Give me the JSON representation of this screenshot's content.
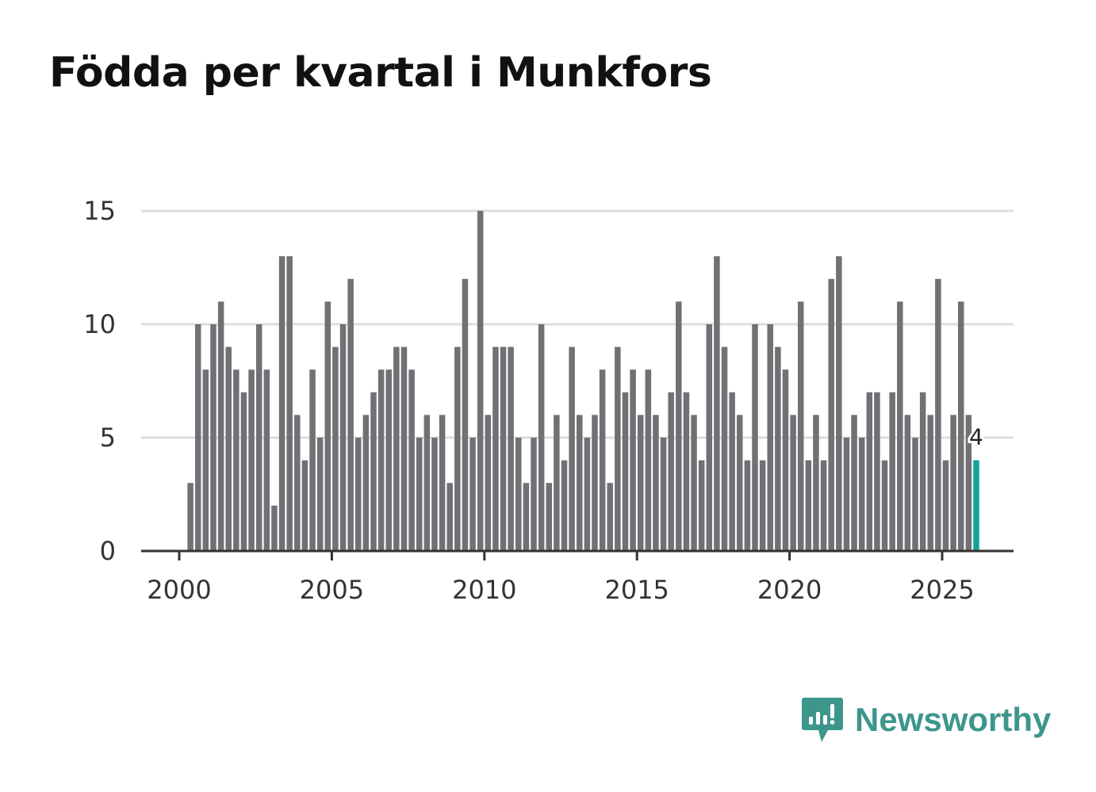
{
  "chart_data": {
    "type": "bar",
    "title": "Födda per kvartal i Munkfors",
    "xlabel": "",
    "ylabel": "",
    "ylim": [
      0,
      15
    ],
    "yticks": [
      0,
      5,
      10,
      15
    ],
    "xticks": [
      2000,
      2005,
      2010,
      2015,
      2020,
      2025
    ],
    "x_start_year": 2000,
    "x_start_quarter": 2,
    "values": [
      3,
      10,
      8,
      10,
      11,
      9,
      8,
      7,
      8,
      10,
      8,
      2,
      13,
      13,
      6,
      4,
      8,
      5,
      11,
      9,
      10,
      12,
      5,
      6,
      7,
      8,
      8,
      9,
      9,
      8,
      5,
      6,
      5,
      6,
      3,
      9,
      12,
      5,
      15,
      6,
      9,
      9,
      9,
      5,
      3,
      5,
      10,
      3,
      6,
      4,
      9,
      6,
      5,
      6,
      8,
      3,
      9,
      7,
      8,
      6,
      8,
      6,
      5,
      7,
      11,
      7,
      6,
      4,
      10,
      13,
      9,
      7,
      6,
      4,
      10,
      4,
      10,
      9,
      8,
      6,
      11,
      4,
      6,
      4,
      12,
      13,
      5,
      6,
      5,
      7,
      7,
      4,
      7,
      11,
      6,
      5,
      7,
      6,
      12,
      4,
      6,
      11,
      6,
      4
    ],
    "highlight_last": true,
    "last_label": "4",
    "colors": {
      "bar": "#717075",
      "highlight": "#11a39a",
      "grid": "#dddddd",
      "axis": "#333333"
    }
  },
  "brand": {
    "name": "Newsworthy",
    "icon": "newsworthy-logo-icon",
    "color": "#3d968c"
  }
}
